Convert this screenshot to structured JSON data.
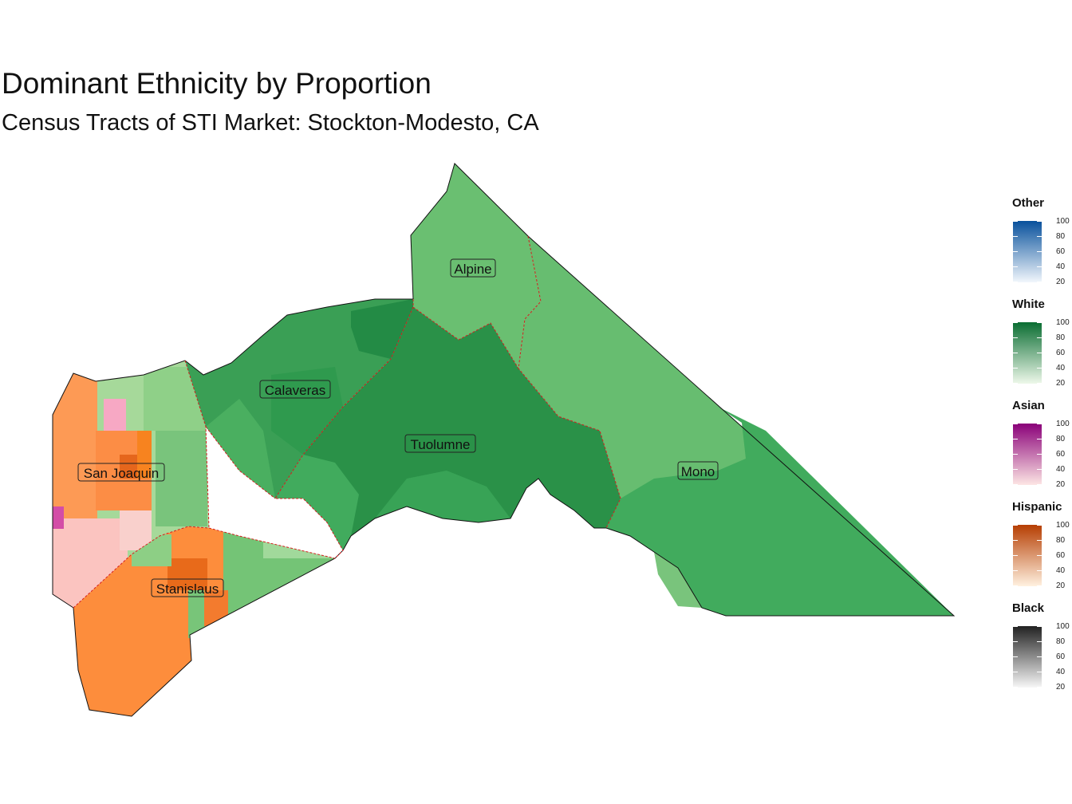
{
  "title": "Dominant Ethnicity by Proportion",
  "subtitle": "Census Tracts of STI Market: Stockton-Modesto, CA",
  "counties": [
    {
      "name": "Alpine",
      "dominant": "White"
    },
    {
      "name": "Calaveras",
      "dominant": "White"
    },
    {
      "name": "Tuolumne",
      "dominant": "White"
    },
    {
      "name": "Mono",
      "dominant": "White"
    },
    {
      "name": "San Joaquin",
      "dominant": "Hispanic"
    },
    {
      "name": "Stanislaus",
      "dominant": "Hispanic"
    }
  ],
  "legends": [
    {
      "title": "Other",
      "low_color": "#f2f7fc",
      "high_color": "#08519c",
      "ticks": [
        "100",
        "80",
        "60",
        "40",
        "20"
      ]
    },
    {
      "title": "White",
      "low_color": "#eef8ea",
      "high_color": "#0a6d32",
      "ticks": [
        "100",
        "80",
        "60",
        "40",
        "20"
      ]
    },
    {
      "title": "Asian",
      "low_color": "#fde6e4",
      "high_color": "#8a0179",
      "ticks": [
        "100",
        "80",
        "60",
        "40",
        "20"
      ]
    },
    {
      "title": "Hispanic",
      "low_color": "#fff1e0",
      "high_color": "#b63e02",
      "ticks": [
        "100",
        "80",
        "60",
        "40",
        "20"
      ]
    },
    {
      "title": "Black",
      "low_color": "#f7f7f7",
      "high_color": "#222222",
      "ticks": [
        "100",
        "80",
        "60",
        "40",
        "20"
      ]
    }
  ],
  "colors": {
    "county_border": "#d62020",
    "outline": "#111111"
  }
}
